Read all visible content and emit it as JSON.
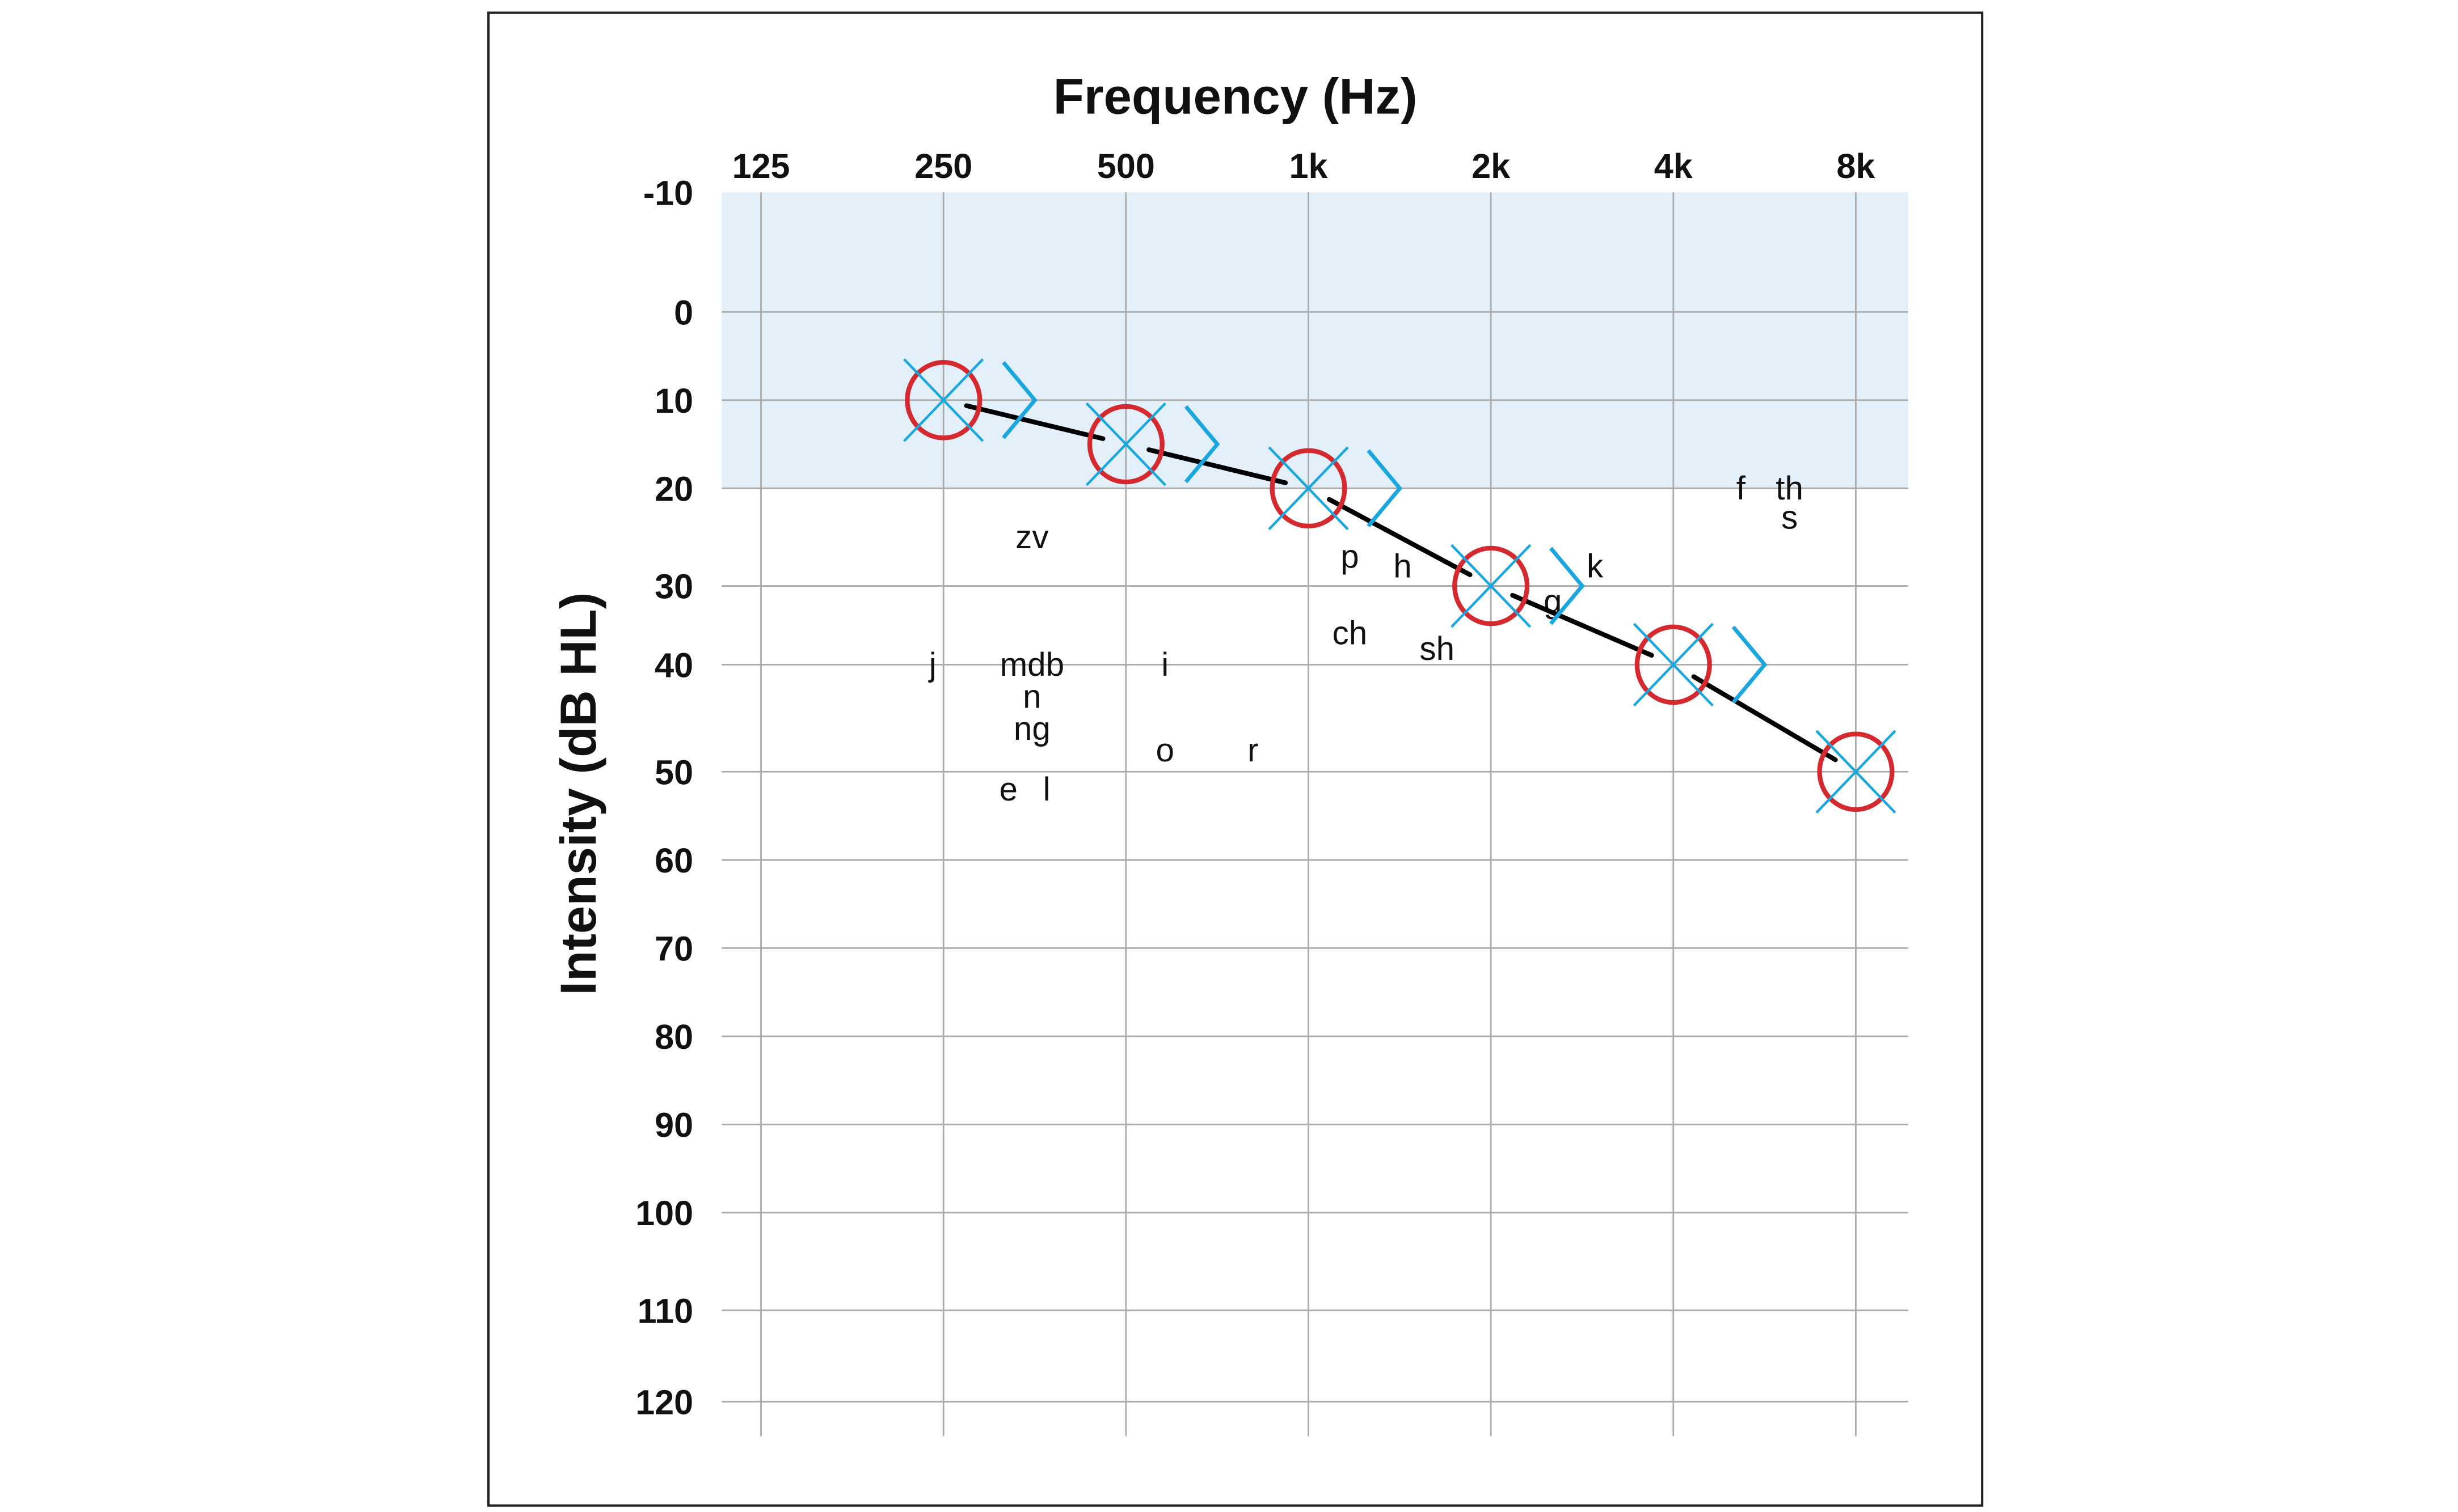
{
  "chart_data": {
    "type": "line",
    "chart_kind": "audiogram",
    "title": "",
    "xlabel": "Frequency (Hz)",
    "ylabel": "Intensity (dB HL)",
    "x_scale": "log2",
    "y_inverted": true,
    "x_ticks": [
      {
        "label": "125",
        "value": 125
      },
      {
        "label": "250",
        "value": 250
      },
      {
        "label": "500",
        "value": 500
      },
      {
        "label": "1k",
        "value": 1000
      },
      {
        "label": "2k",
        "value": 2000
      },
      {
        "label": "4k",
        "value": 4000
      },
      {
        "label": "8k",
        "value": 8000
      }
    ],
    "y_ticks": [
      -10,
      0,
      10,
      20,
      30,
      40,
      50,
      60,
      70,
      80,
      90,
      100,
      110,
      120
    ],
    "ylim": [
      -10,
      120
    ],
    "grid": true,
    "normal_hearing_band": {
      "from": -10,
      "to": 20,
      "color": "#e3f0fa"
    },
    "colors": {
      "right_air": "#d42a2f",
      "left_air": "#1aa7e0",
      "bone": "#1aa7e0",
      "line": "#000000",
      "grid": "#aaaaaa"
    },
    "series": [
      {
        "symbol": "circle",
        "x": [
          250,
          500,
          1000,
          2000,
          4000,
          8000
        ],
        "values": [
          10,
          15,
          20,
          30,
          40,
          50
        ]
      },
      {
        "symbol": "x",
        "x": [
          250,
          500,
          1000,
          2000,
          4000,
          8000
        ],
        "values": [
          10,
          15,
          20,
          30,
          40,
          50
        ]
      },
      {
        "symbol": "bone-right-bracket",
        "x": [
          250,
          500,
          1000,
          2000,
          4000
        ],
        "values": [
          10,
          15,
          20,
          30,
          40
        ]
      }
    ],
    "speech_sounds": [
      {
        "text": "zv",
        "freq": 350,
        "db": 25
      },
      {
        "text": "j",
        "freq": 240,
        "db": 40
      },
      {
        "text": "mdb",
        "freq": 350,
        "db": 40
      },
      {
        "text": "n",
        "freq": 350,
        "db": 43
      },
      {
        "text": "ng",
        "freq": 350,
        "db": 46
      },
      {
        "text": "e",
        "freq": 320,
        "db": 52
      },
      {
        "text": "l",
        "freq": 370,
        "db": 52
      },
      {
        "text": "i",
        "freq": 580,
        "db": 40
      },
      {
        "text": "o",
        "freq": 580,
        "db": 48
      },
      {
        "text": "r",
        "freq": 810,
        "db": 48
      },
      {
        "text": "p",
        "freq": 1170,
        "db": 27
      },
      {
        "text": "h",
        "freq": 1430,
        "db": 28
      },
      {
        "text": "ch",
        "freq": 1170,
        "db": 36
      },
      {
        "text": "sh",
        "freq": 1630,
        "db": 38
      },
      {
        "text": "g",
        "freq": 2530,
        "db": 32
      },
      {
        "text": "k",
        "freq": 2970,
        "db": 28
      },
      {
        "text": "f",
        "freq": 5170,
        "db": 20
      },
      {
        "text": "th",
        "freq": 6220,
        "db": 20
      },
      {
        "text": "s",
        "freq": 6220,
        "db": 23
      }
    ]
  }
}
